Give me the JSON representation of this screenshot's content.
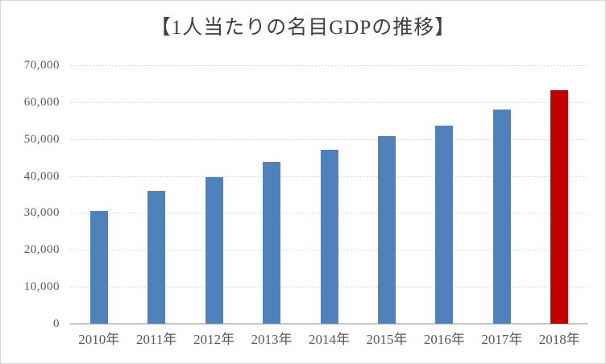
{
  "chart_data": {
    "type": "bar",
    "title": "【1人当たりの名目GDPの推移】",
    "categories": [
      "2010年",
      "2011年",
      "2012年",
      "2013年",
      "2014年",
      "2015年",
      "2016年",
      "2017年",
      "2018年"
    ],
    "values": [
      30500,
      35900,
      39800,
      43800,
      47100,
      50800,
      53700,
      58100,
      63300
    ],
    "highlight_index": 8,
    "xlabel": "",
    "ylabel": "",
    "ylim": [
      0,
      70000
    ],
    "ytick_step": 10000,
    "ytick_labels": [
      "0",
      "10,000",
      "20,000",
      "30,000",
      "40,000",
      "50,000",
      "60,000",
      "70,000"
    ],
    "grid": true,
    "legend_position": "none",
    "colors": {
      "bar": "#4F81BD",
      "highlight_bar": "#C00000",
      "gridline": "#D9D9D9",
      "axis_line": "#C3C3C3",
      "title_text": "#404040",
      "tick_text": "#595959",
      "frame_border": "#D9D9D9",
      "background": "#FFFFFF"
    }
  }
}
